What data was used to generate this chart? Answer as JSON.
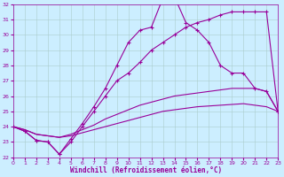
{
  "xlabel": "Windchill (Refroidissement éolien,°C)",
  "xlim": [
    0,
    23
  ],
  "ylim": [
    22,
    32
  ],
  "yticks": [
    22,
    23,
    24,
    25,
    26,
    27,
    28,
    29,
    30,
    31,
    32
  ],
  "xticks": [
    0,
    1,
    2,
    3,
    4,
    5,
    6,
    7,
    8,
    9,
    10,
    11,
    12,
    13,
    14,
    15,
    16,
    17,
    18,
    19,
    20,
    21,
    22,
    23
  ],
  "bg_color": "#cceeff",
  "line_color": "#990099",
  "grid_color": "#aacccc",
  "line_spiky_x": [
    0,
    1,
    2,
    3,
    4,
    5,
    6,
    7,
    8,
    9,
    10,
    11,
    12,
    13,
    14,
    15,
    16,
    17,
    18,
    19,
    20,
    21,
    22,
    23
  ],
  "line_spiky_y": [
    24.0,
    23.7,
    23.1,
    23.0,
    22.2,
    23.2,
    24.2,
    25.3,
    26.5,
    28.0,
    29.5,
    30.3,
    30.5,
    32.4,
    32.5,
    30.8,
    30.3,
    29.5,
    28.0,
    27.5,
    27.5,
    26.5,
    26.3,
    25.0
  ],
  "line_smooth_x": [
    0,
    1,
    2,
    3,
    4,
    5,
    6,
    7,
    8,
    9,
    10,
    11,
    12,
    13,
    14,
    15,
    16,
    17,
    18,
    19,
    20,
    21,
    22,
    23
  ],
  "line_smooth_y": [
    24.0,
    23.7,
    23.1,
    23.0,
    22.2,
    23.0,
    24.0,
    25.0,
    26.0,
    27.0,
    27.5,
    28.2,
    29.0,
    29.5,
    30.0,
    30.5,
    30.8,
    31.0,
    31.3,
    31.5,
    31.5,
    31.5,
    31.5,
    25.0
  ],
  "line_upper_x": [
    0,
    1,
    2,
    3,
    4,
    5,
    6,
    7,
    8,
    9,
    10,
    11,
    12,
    13,
    14,
    15,
    16,
    17,
    18,
    19,
    20,
    21,
    22,
    23
  ],
  "line_upper_y": [
    24.0,
    23.8,
    23.5,
    23.4,
    23.3,
    23.5,
    23.8,
    24.1,
    24.5,
    24.8,
    25.1,
    25.4,
    25.6,
    25.8,
    26.0,
    26.1,
    26.2,
    26.3,
    26.4,
    26.5,
    26.5,
    26.5,
    26.3,
    25.0
  ],
  "line_lower_x": [
    0,
    1,
    2,
    3,
    4,
    5,
    6,
    7,
    8,
    9,
    10,
    11,
    12,
    13,
    14,
    15,
    16,
    17,
    18,
    19,
    20,
    21,
    22,
    23
  ],
  "line_lower_y": [
    24.0,
    23.8,
    23.5,
    23.4,
    23.3,
    23.4,
    23.6,
    23.8,
    24.0,
    24.2,
    24.4,
    24.6,
    24.8,
    25.0,
    25.1,
    25.2,
    25.3,
    25.35,
    25.4,
    25.45,
    25.5,
    25.4,
    25.3,
    25.0
  ]
}
